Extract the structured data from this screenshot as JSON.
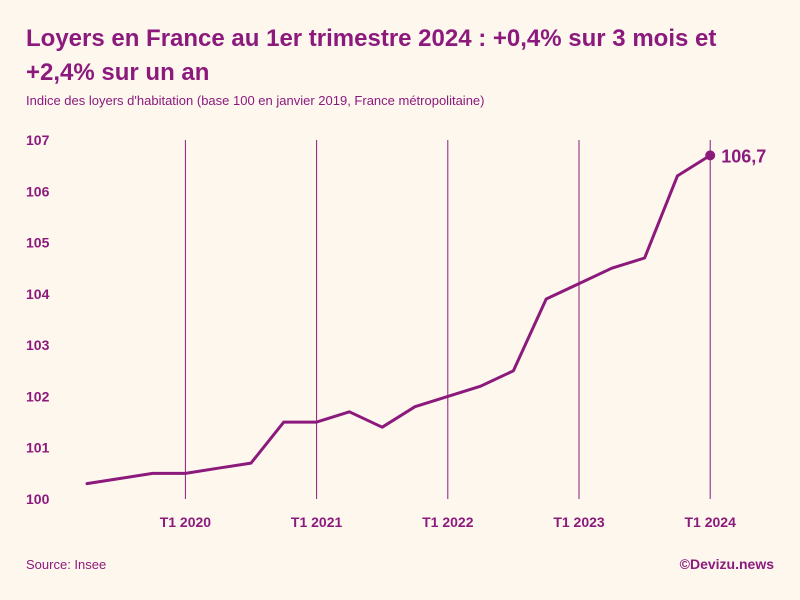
{
  "title": "Loyers en France au 1er trimestre 2024 : +0,4% sur 3 mois et +2,4% sur un an",
  "subtitle": "Indice des loyers d'habitation (base 100 en janvier 2019, France métropolitaine)",
  "source": "Source: Insee",
  "credit": "©Devizu.news",
  "colors": {
    "accent": "#8c1a7c",
    "background": "#fdf7ee"
  },
  "chart_data": {
    "type": "line",
    "title": "Loyers en France au 1er trimestre 2024 : +0,4% sur 3 mois et +2,4% sur un an",
    "subtitle": "Indice des loyers d'habitation (base 100 en janvier 2019, France métropolitaine)",
    "ylim": [
      100,
      107
    ],
    "y_ticks": [
      "100",
      "101",
      "102",
      "103",
      "104",
      "105",
      "106",
      "107"
    ],
    "x_ticks": [
      "T1 2020",
      "T1 2021",
      "T1 2022",
      "T1 2023",
      "T1 2024"
    ],
    "grid": "vertical lines at each T1",
    "series": [
      {
        "x": [
          "T2 2019",
          "T3 2019",
          "T4 2019",
          "T1 2020",
          "T2 2020",
          "T3 2020",
          "T4 2020",
          "T1 2021",
          "T2 2021",
          "T3 2021",
          "T4 2021",
          "T1 2022",
          "T2 2022",
          "T3 2022",
          "T4 2022",
          "T1 2023",
          "T2 2023",
          "T3 2023",
          "T4 2023",
          "T1 2024"
        ],
        "values": [
          100.3,
          100.4,
          100.5,
          100.5,
          100.6,
          100.7,
          101.5,
          101.5,
          101.7,
          101.4,
          101.8,
          102.0,
          102.2,
          102.5,
          103.9,
          104.2,
          104.5,
          104.7,
          106.3,
          106.7
        ]
      }
    ],
    "annotations": [
      {
        "x": "T1 2024",
        "text": "106,7"
      }
    ]
  }
}
